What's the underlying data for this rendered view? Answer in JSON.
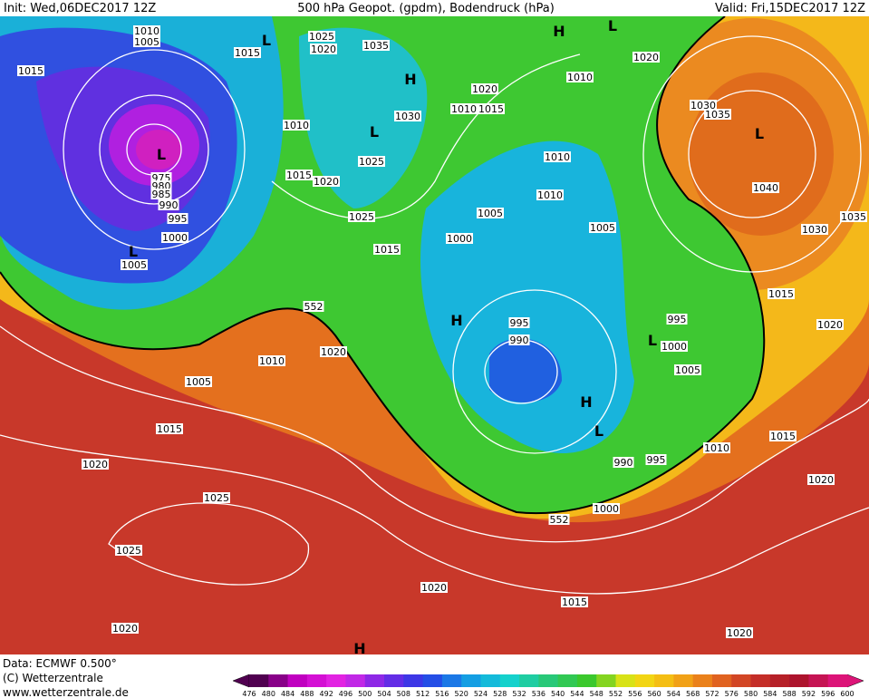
{
  "header": {
    "init": "Init: Wed,06DEC2017 12Z",
    "title": "500 hPa Geopot. (gpdm), Bodendruck (hPa)",
    "valid": "Valid: Fri,15DEC2017 12Z"
  },
  "isobar_labels": [
    "1010",
    "1005",
    "1015",
    "1015",
    "1025",
    "1020",
    "1035",
    "1020",
    "1010",
    "1020",
    "1010",
    "1015",
    "1030",
    "1010",
    "1030",
    "1035",
    "1025",
    "1010",
    "1015",
    "1020",
    "1010",
    "1040",
    "975",
    "980",
    "985",
    "990",
    "995",
    "1000",
    "1005",
    "1025",
    "1005",
    "1005",
    "1035",
    "1030",
    "1000",
    "1015",
    "1015",
    "1020",
    "552",
    "995",
    "995",
    "1020",
    "990",
    "1000",
    "1010",
    "1005",
    "1005",
    "1015",
    "1015",
    "1010",
    "1020",
    "990",
    "995",
    "1020",
    "1025",
    "1000",
    "552",
    "1025",
    "1020",
    "1015",
    "1020",
    "1020"
  ],
  "pressure_centers": [
    "L",
    "H",
    "L",
    "H",
    "L",
    "L",
    "L",
    "L",
    "H",
    "L",
    "H",
    "L",
    "H"
  ],
  "footer": {
    "data": "Data: ECMWF  0.500°",
    "copyright": "(C) Wetterzentrale",
    "url": "www.wetterzentrale.de"
  },
  "colorbar": {
    "labels": [
      476,
      480,
      484,
      488,
      492,
      496,
      500,
      504,
      508,
      512,
      516,
      520,
      524,
      528,
      532,
      536,
      540,
      544,
      548,
      552,
      556,
      560,
      564,
      568,
      572,
      576,
      580,
      584,
      588,
      592,
      596,
      600
    ]
  }
}
